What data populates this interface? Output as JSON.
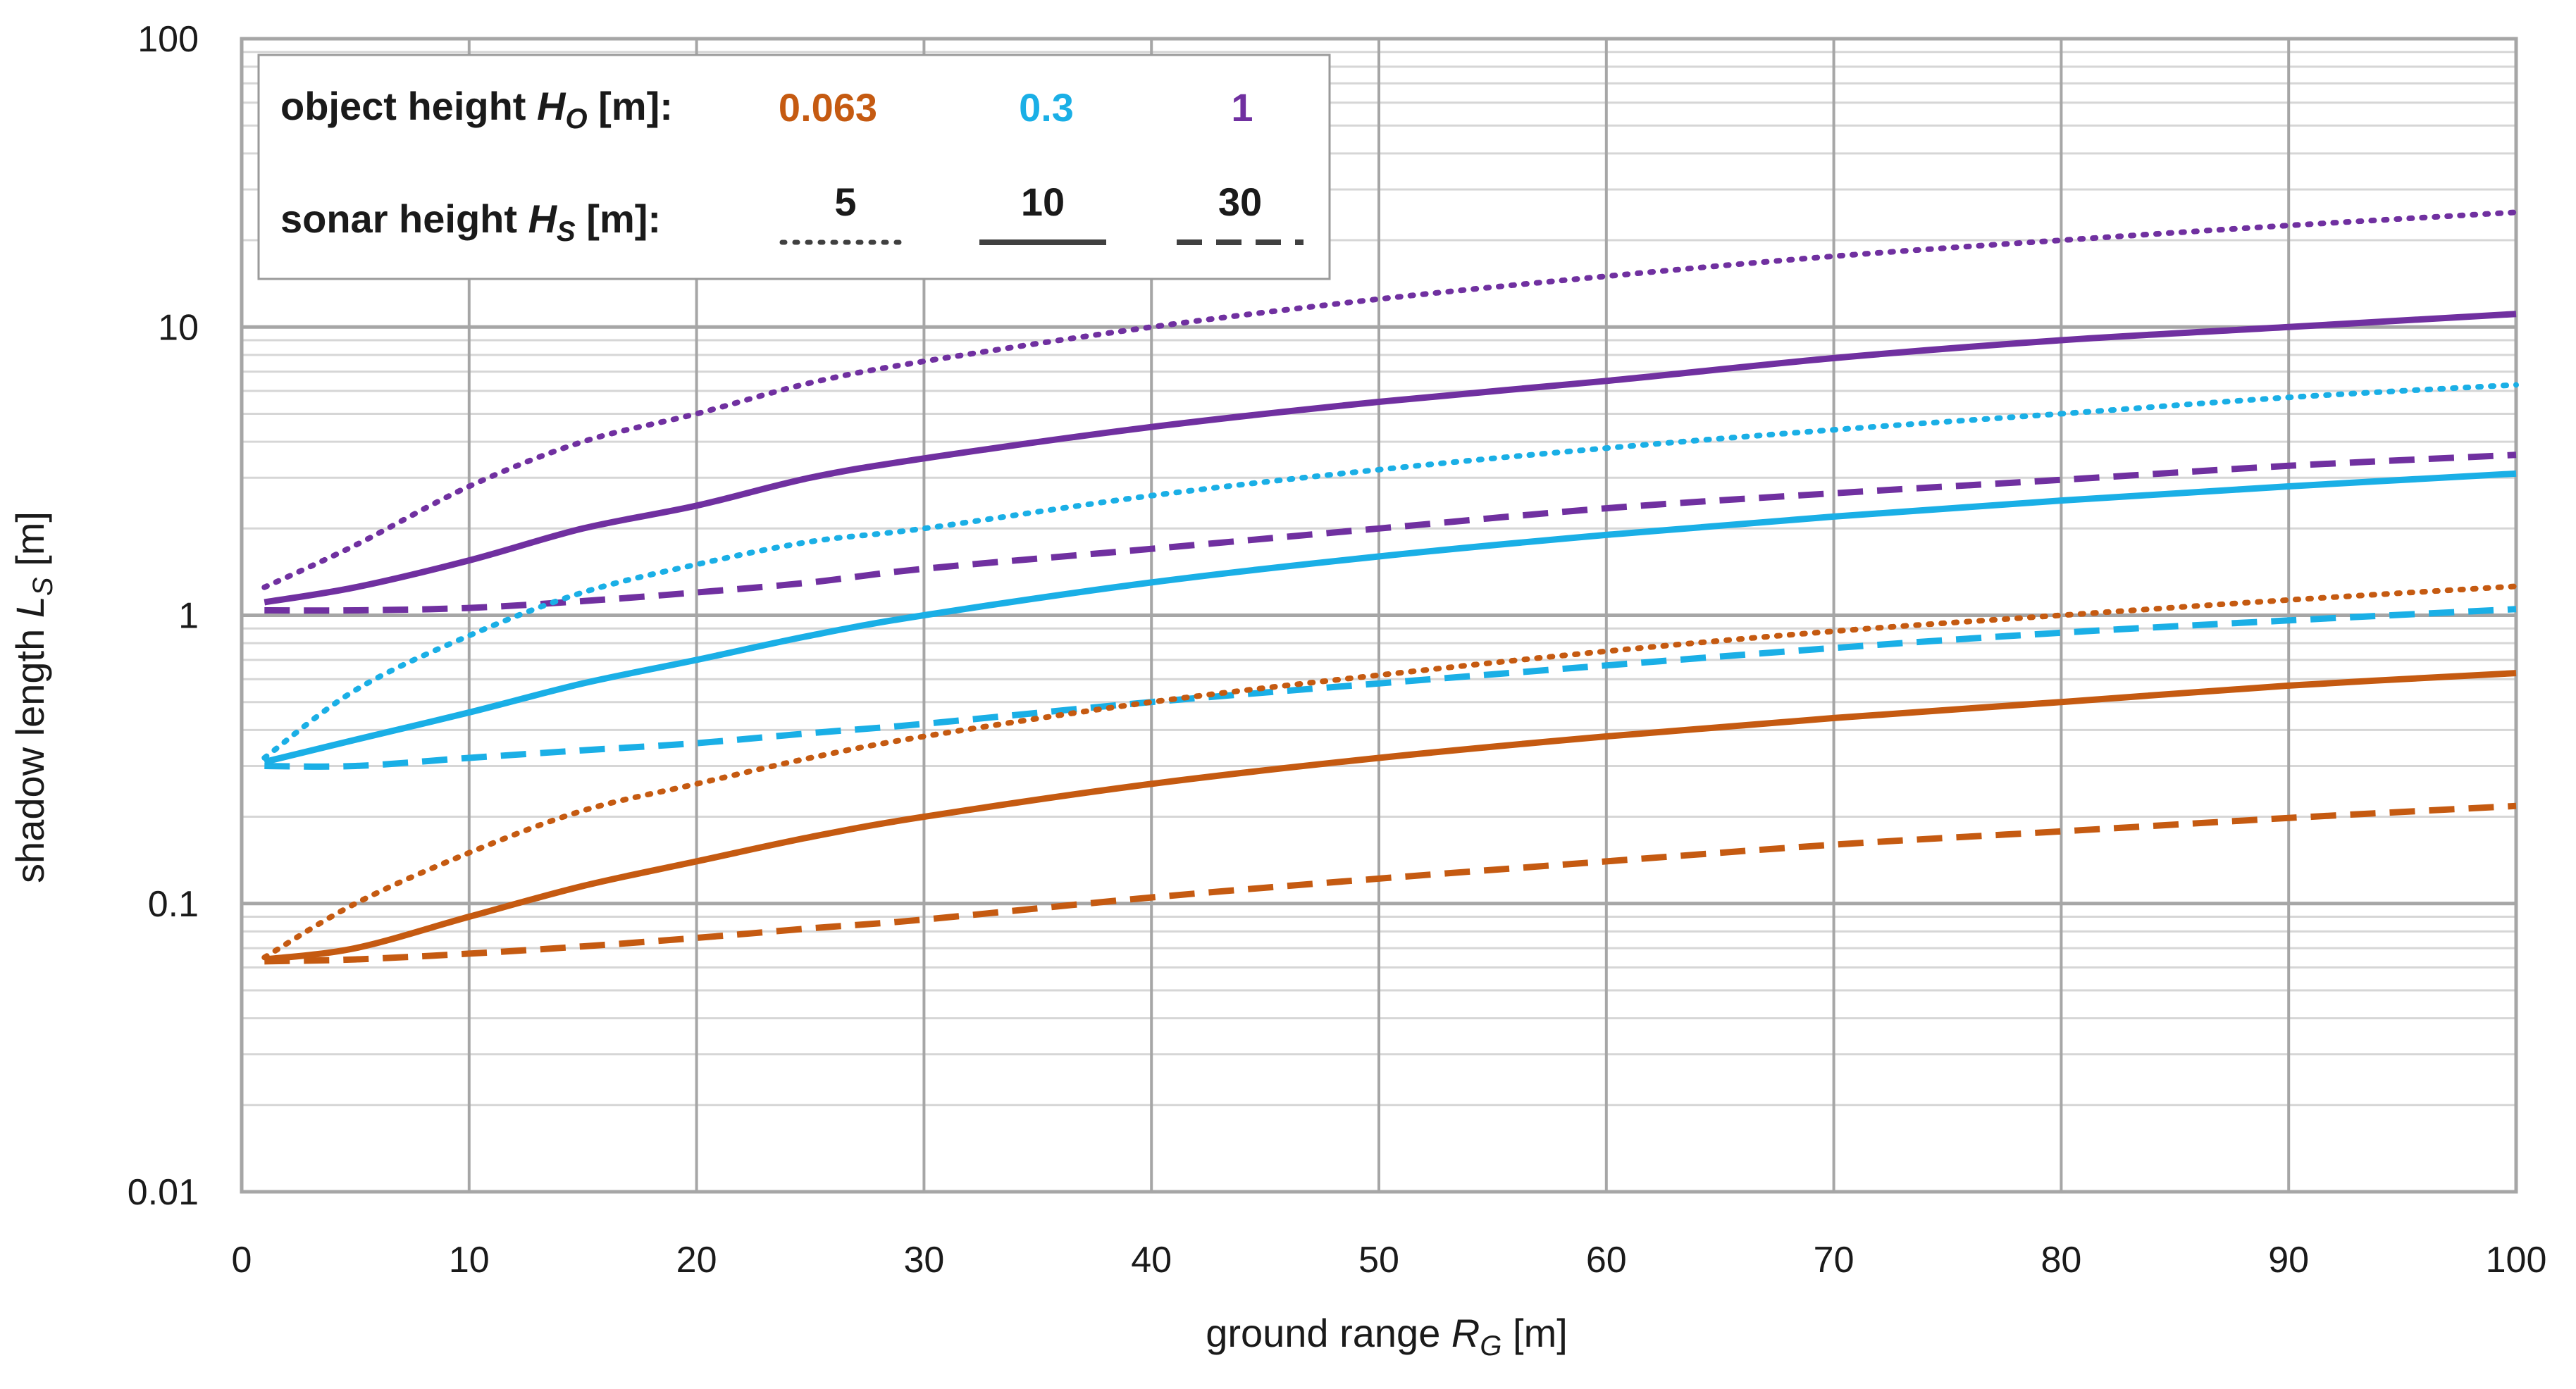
{
  "chart_data": {
    "type": "line",
    "xlabel": {
      "base": "ground range ",
      "var": "R",
      "sub": "G",
      "unit": " [m]"
    },
    "ylabel": {
      "base": "shadow length ",
      "var": "L",
      "sub": "S",
      "unit": " [m]"
    },
    "xlim": [
      0,
      100
    ],
    "ylim": [
      0.01,
      100
    ],
    "yscale": "log",
    "grid": true,
    "x_ticks": [
      "0",
      "10",
      "20",
      "30",
      "40",
      "50",
      "60",
      "70",
      "80",
      "90",
      "100"
    ],
    "y_ticks": [
      "0.01",
      "0.1",
      "1",
      "10",
      "100"
    ],
    "legend": {
      "placement": "top-left",
      "object_row": {
        "base": "object height ",
        "var": "H",
        "sub": "O",
        "unit": " [m]:"
      },
      "sonar_row": {
        "base": "sonar height ",
        "var": "H",
        "sub": "S",
        "unit": " [m]:"
      },
      "object_heights": [
        {
          "label": "0.063",
          "color": "#C55A11"
        },
        {
          "label": "0.3",
          "color": "#1AAFE6"
        },
        {
          "label": "1",
          "color": "#7030A0"
        }
      ],
      "sonar_heights": [
        {
          "label": "5",
          "style": "dotted"
        },
        {
          "label": "10",
          "style": "solid"
        },
        {
          "label": "30",
          "style": "dashed"
        }
      ]
    },
    "x": [
      1,
      5,
      10,
      15,
      20,
      25,
      30,
      40,
      50,
      60,
      70,
      80,
      90,
      100
    ],
    "series": [
      {
        "object_height": "1",
        "sonar_height": "5",
        "color": "#7030A0",
        "style": "dotted",
        "values": [
          1.25,
          1.75,
          2.8,
          4.0,
          5.0,
          6.4,
          7.6,
          10.0,
          12.5,
          15.0,
          17.6,
          20.0,
          22.5,
          25.0
        ]
      },
      {
        "object_height": "1",
        "sonar_height": "10",
        "color": "#7030A0",
        "style": "solid",
        "values": [
          1.11,
          1.25,
          1.55,
          2.0,
          2.4,
          3.0,
          3.5,
          4.5,
          5.5,
          6.5,
          7.8,
          9.0,
          10.0,
          11.1
        ]
      },
      {
        "object_height": "1",
        "sonar_height": "30",
        "color": "#7030A0",
        "style": "dashed",
        "values": [
          1.04,
          1.04,
          1.06,
          1.12,
          1.2,
          1.3,
          1.45,
          1.7,
          2.0,
          2.35,
          2.65,
          2.95,
          3.3,
          3.6
        ]
      },
      {
        "object_height": "0.3",
        "sonar_height": "5",
        "color": "#1AAFE6",
        "style": "dotted",
        "values": [
          0.32,
          0.55,
          0.85,
          1.2,
          1.5,
          1.8,
          2.0,
          2.6,
          3.2,
          3.8,
          4.4,
          5.0,
          5.7,
          6.3
        ]
      },
      {
        "object_height": "0.3",
        "sonar_height": "10",
        "color": "#1AAFE6",
        "style": "solid",
        "values": [
          0.31,
          0.37,
          0.46,
          0.58,
          0.7,
          0.85,
          1.0,
          1.3,
          1.6,
          1.9,
          2.2,
          2.5,
          2.8,
          3.1
        ]
      },
      {
        "object_height": "0.3",
        "sonar_height": "30",
        "color": "#1AAFE6",
        "style": "dashed",
        "values": [
          0.3,
          0.3,
          0.32,
          0.34,
          0.36,
          0.39,
          0.42,
          0.5,
          0.58,
          0.67,
          0.77,
          0.87,
          0.96,
          1.05
        ]
      },
      {
        "object_height": "0.063",
        "sonar_height": "5",
        "color": "#C55A11",
        "style": "dotted",
        "values": [
          0.065,
          0.1,
          0.15,
          0.21,
          0.26,
          0.32,
          0.38,
          0.5,
          0.62,
          0.75,
          0.88,
          1.0,
          1.13,
          1.26
        ]
      },
      {
        "object_height": "0.063",
        "sonar_height": "10",
        "color": "#C55A11",
        "style": "solid",
        "values": [
          0.064,
          0.07,
          0.09,
          0.115,
          0.14,
          0.17,
          0.2,
          0.26,
          0.32,
          0.38,
          0.44,
          0.5,
          0.57,
          0.63
        ]
      },
      {
        "object_height": "0.063",
        "sonar_height": "30",
        "color": "#C55A11",
        "style": "dashed",
        "values": [
          0.063,
          0.064,
          0.067,
          0.071,
          0.076,
          0.082,
          0.088,
          0.105,
          0.122,
          0.14,
          0.16,
          0.178,
          0.198,
          0.218
        ]
      }
    ]
  }
}
